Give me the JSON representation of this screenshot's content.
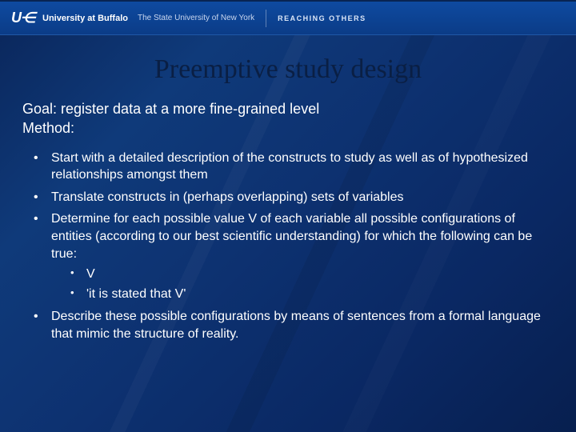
{
  "header": {
    "logo_mark": "U⋲",
    "university": "University at Buffalo",
    "suny": "The State University of New York",
    "tagline": "REACHING OTHERS"
  },
  "slide": {
    "title": "Preemptive study design",
    "goal_line": "Goal: register data at a more fine-grained level",
    "method_line": "Method:",
    "bullets": [
      "Start with a detailed description of the constructs to study as well as of hypothesized relationships amongst them",
      "Translate constructs in (perhaps overlapping) sets of variables",
      "Determine for each possible value V of each variable all possible configurations of entities (according to our best scientific understanding) for which the following can be true:",
      "Describe these possible configurations by means of sentences from a formal language that mimic the structure of reality."
    ],
    "sub_bullets": [
      "V",
      "'it is stated that V'"
    ]
  },
  "colors": {
    "title_color": "#0a1f44",
    "text_color": "#ffffff",
    "header_bg_top": "#0e4aa0",
    "header_bg_bottom": "#0b3c87",
    "body_bg": "#0d3170"
  }
}
